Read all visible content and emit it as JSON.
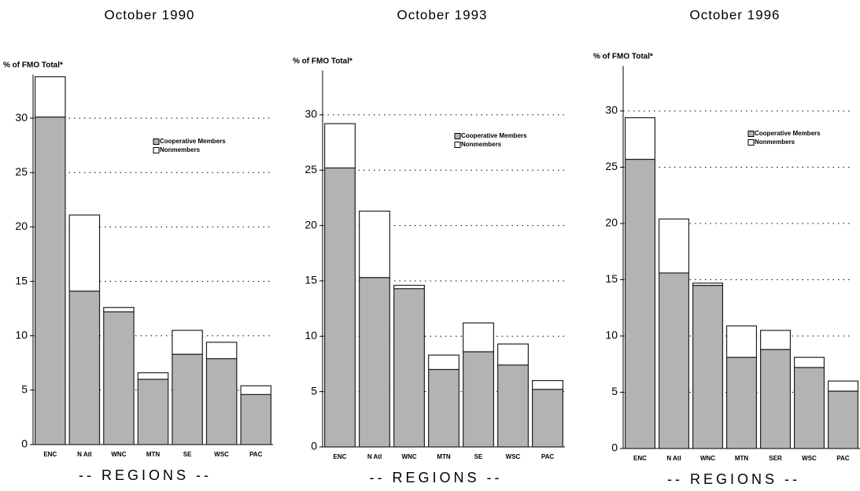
{
  "chart_data": [
    {
      "type": "stacked-bar",
      "title": "October 1990",
      "y_label": "% of FMO Total*",
      "x_label": "-- REGIONS --",
      "categories": [
        "ENC",
        "N Atl",
        "WNC",
        "MTN",
        "SE",
        "WSC",
        "PAC"
      ],
      "series": [
        {
          "name": "Cooperative Members",
          "color": "#b3b3b3",
          "values": [
            30.1,
            14.1,
            12.2,
            6.0,
            8.3,
            7.9,
            4.6
          ]
        },
        {
          "name": "Nonmembers",
          "color": "#ffffff",
          "values": [
            3.7,
            7.0,
            0.4,
            0.6,
            2.2,
            1.5,
            0.8
          ]
        }
      ],
      "ylim": [
        0,
        34
      ],
      "yticks": [
        0,
        5,
        10,
        15,
        20,
        25,
        30
      ],
      "grid": true
    },
    {
      "type": "stacked-bar",
      "title": "October 1993",
      "y_label": "% of FMO Total*",
      "x_label": "-- REGIONS --",
      "categories": [
        "ENC",
        "N Atl",
        "WNC",
        "MTN",
        "SE",
        "WSC",
        "PAC"
      ],
      "series": [
        {
          "name": "Cooperative Members",
          "color": "#b3b3b3",
          "values": [
            25.2,
            15.3,
            14.3,
            7.0,
            8.6,
            7.4,
            5.2
          ]
        },
        {
          "name": "Nonmembers",
          "color": "#ffffff",
          "values": [
            4.0,
            6.0,
            0.3,
            1.3,
            2.6,
            1.9,
            0.8
          ]
        }
      ],
      "ylim": [
        0,
        34
      ],
      "yticks": [
        0,
        5,
        10,
        15,
        20,
        25,
        30
      ],
      "grid": true
    },
    {
      "type": "stacked-bar",
      "title": "October 1996",
      "y_label": "% of FMO Total*",
      "x_label": "-- REGIONS --",
      "categories": [
        "ENC",
        "N Atl",
        "WNC",
        "MTN",
        "SER",
        "WSC",
        "PAC"
      ],
      "series": [
        {
          "name": "Cooperative Members",
          "color": "#b3b3b3",
          "values": [
            25.7,
            15.6,
            14.5,
            8.1,
            8.8,
            7.2,
            5.1
          ]
        },
        {
          "name": "Nonmembers",
          "color": "#ffffff",
          "values": [
            3.7,
            4.8,
            0.2,
            2.8,
            1.7,
            0.9,
            0.9
          ]
        }
      ],
      "ylim": [
        0,
        34
      ],
      "yticks": [
        0,
        5,
        10,
        15,
        20,
        25,
        30
      ],
      "grid": true
    }
  ]
}
